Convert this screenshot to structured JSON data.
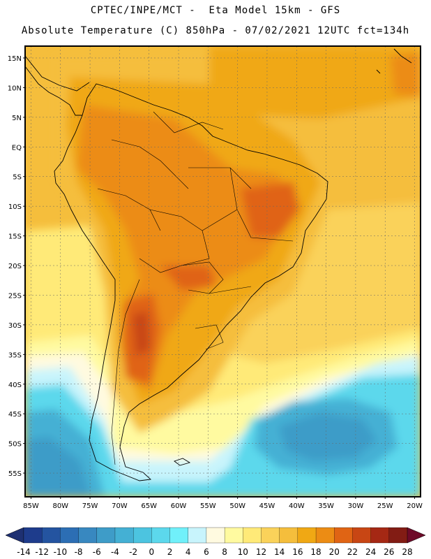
{
  "header": {
    "line1": "CPTEC/INPE/MCT -  Eta Model 15km - GFS",
    "line2": "Absolute Temperature (C) 850hPa - 07/02/2021 12UTC fct=134h"
  },
  "map": {
    "lon_range": [
      -86,
      -19
    ],
    "lat_range": [
      -59,
      17
    ],
    "lat_ticks": [
      {
        "value": 15,
        "label": "15N"
      },
      {
        "value": 10,
        "label": "10N"
      },
      {
        "value": 5,
        "label": "5N"
      },
      {
        "value": 0,
        "label": "EQ"
      },
      {
        "value": -5,
        "label": "5S"
      },
      {
        "value": -10,
        "label": "10S"
      },
      {
        "value": -15,
        "label": "15S"
      },
      {
        "value": -20,
        "label": "20S"
      },
      {
        "value": -25,
        "label": "25S"
      },
      {
        "value": -30,
        "label": "30S"
      },
      {
        "value": -35,
        "label": "35S"
      },
      {
        "value": -40,
        "label": "40S"
      },
      {
        "value": -45,
        "label": "45S"
      },
      {
        "value": -50,
        "label": "50S"
      },
      {
        "value": -55,
        "label": "55S"
      }
    ],
    "lon_ticks": [
      {
        "value": -85,
        "label": "85W"
      },
      {
        "value": -80,
        "label": "80W"
      },
      {
        "value": -75,
        "label": "75W"
      },
      {
        "value": -70,
        "label": "70W"
      },
      {
        "value": -65,
        "label": "65W"
      },
      {
        "value": -60,
        "label": "60W"
      },
      {
        "value": -55,
        "label": "55W"
      },
      {
        "value": -50,
        "label": "50W"
      },
      {
        "value": -45,
        "label": "45W"
      },
      {
        "value": -40,
        "label": "40W"
      },
      {
        "value": -35,
        "label": "35W"
      },
      {
        "value": -30,
        "label": "30W"
      },
      {
        "value": -25,
        "label": "25W"
      },
      {
        "value": -20,
        "label": "20W"
      }
    ]
  },
  "colorbar": {
    "labels": [
      "-14",
      "-12",
      "-10",
      "-8",
      "-6",
      "-4",
      "-2",
      "0",
      "2",
      "4",
      "6",
      "8",
      "10",
      "12",
      "14",
      "16",
      "18",
      "20",
      "22",
      "24",
      "26",
      "28"
    ],
    "colors": [
      "#1e3c8c",
      "#2454a0",
      "#2c6eb4",
      "#3888c0",
      "#3e9cc8",
      "#44b0d4",
      "#4cc4e0",
      "#5cd8ec",
      "#70f0fa",
      "#c8f4fc",
      "#fffae0",
      "#fffaa0",
      "#ffea78",
      "#fad25a",
      "#f5be3c",
      "#f0a814",
      "#ec8c14",
      "#e06414",
      "#c84614",
      "#a52814",
      "#821c14"
    ],
    "low_color": "#1e3072",
    "high_color": "#6e0a28"
  },
  "field_colors": {
    "c4": "#c8f4fc",
    "c6": "#fffae0",
    "c8": "#fffaa0",
    "c10": "#ffea78",
    "c12": "#fad25a",
    "c14": "#f5be3c",
    "c16": "#f0a814",
    "c18": "#ec8c14",
    "c20": "#e06414",
    "c22": "#c84614",
    "m2": "#5cd8ec",
    "m0": "#44b0d4",
    "m4": "#3e9cc8",
    "m6": "#3888c0",
    "m8": "#2c6eb4"
  }
}
